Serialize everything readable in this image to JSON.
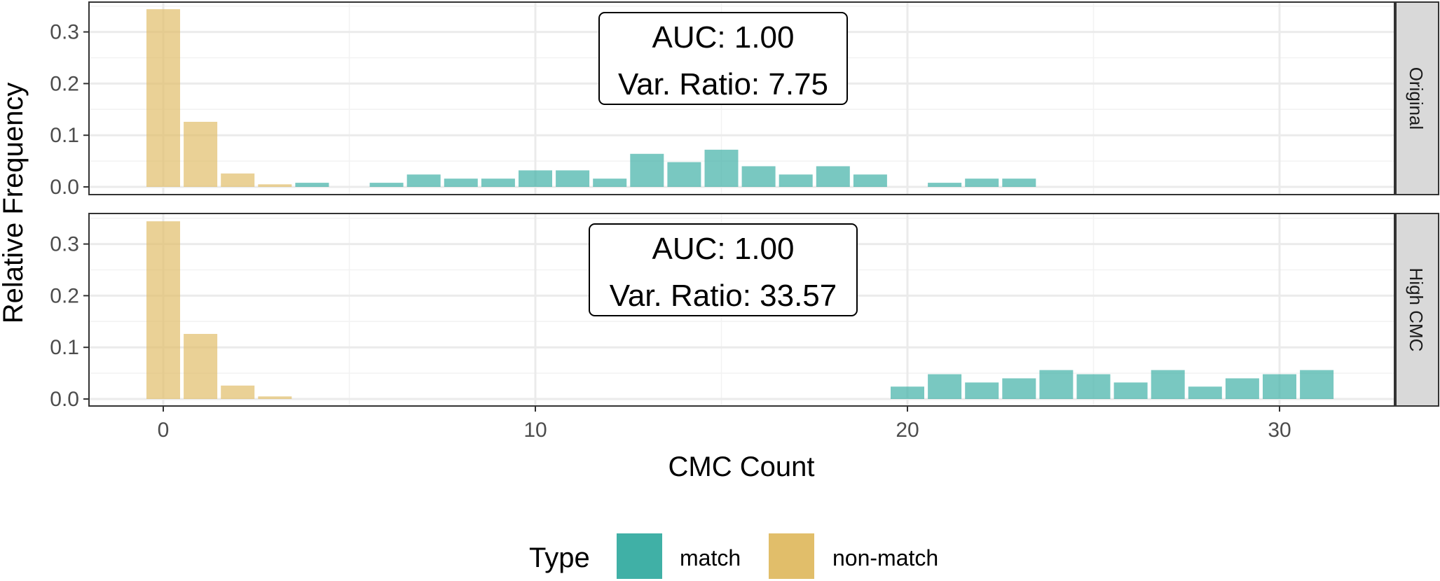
{
  "chart_data": {
    "type": "bar",
    "xlabel": "CMC Count",
    "ylabel": "Relative Frequency",
    "xlim": [
      -2,
      33
    ],
    "ylim": [
      0,
      0.36
    ],
    "x_ticks": [
      0,
      10,
      20,
      30
    ],
    "x_tick_labels": [
      "0",
      "10",
      "20",
      "30"
    ],
    "y_ticks": [
      0,
      0.1,
      0.2,
      0.3
    ],
    "y_tick_labels": [
      "0.0",
      "0.1",
      "0.2",
      "0.3"
    ],
    "grid": true,
    "legend": {
      "title": "Type",
      "position": "bottom",
      "items": [
        {
          "label": "match",
          "color": "#40B0A6"
        },
        {
          "label": "non-match",
          "color": "#E1BE6A"
        }
      ]
    },
    "panels": [
      {
        "strip": "Original",
        "annotation": [
          "AUC: 1.00",
          "Var. Ratio: 7.75"
        ],
        "series": [
          {
            "name": "non-match",
            "color": "#E1BE6A",
            "x": [
              0,
              1,
              2,
              3
            ],
            "values": [
              0.344,
              0.126,
              0.026,
              0.005
            ]
          },
          {
            "name": "match",
            "color": "#40B0A6",
            "x": [
              4,
              6,
              7,
              8,
              9,
              10,
              11,
              12,
              13,
              14,
              15,
              16,
              17,
              18,
              19,
              21,
              22,
              23
            ],
            "values": [
              0.008,
              0.008,
              0.024,
              0.016,
              0.016,
              0.032,
              0.032,
              0.016,
              0.064,
              0.048,
              0.072,
              0.04,
              0.024,
              0.04,
              0.024,
              0.008,
              0.016,
              0.016
            ]
          }
        ]
      },
      {
        "strip": "High CMC",
        "annotation": [
          "AUC: 1.00",
          "Var. Ratio: 33.57"
        ],
        "series": [
          {
            "name": "non-match",
            "color": "#E1BE6A",
            "x": [
              0,
              1,
              2,
              3
            ],
            "values": [
              0.344,
              0.126,
              0.026,
              0.005
            ]
          },
          {
            "name": "match",
            "color": "#40B0A6",
            "x": [
              20,
              21,
              22,
              23,
              24,
              25,
              26,
              27,
              28,
              29,
              30,
              31
            ],
            "values": [
              0.024,
              0.048,
              0.032,
              0.04,
              0.056,
              0.048,
              0.032,
              0.056,
              0.024,
              0.04,
              0.048,
              0.056
            ]
          }
        ]
      }
    ]
  }
}
